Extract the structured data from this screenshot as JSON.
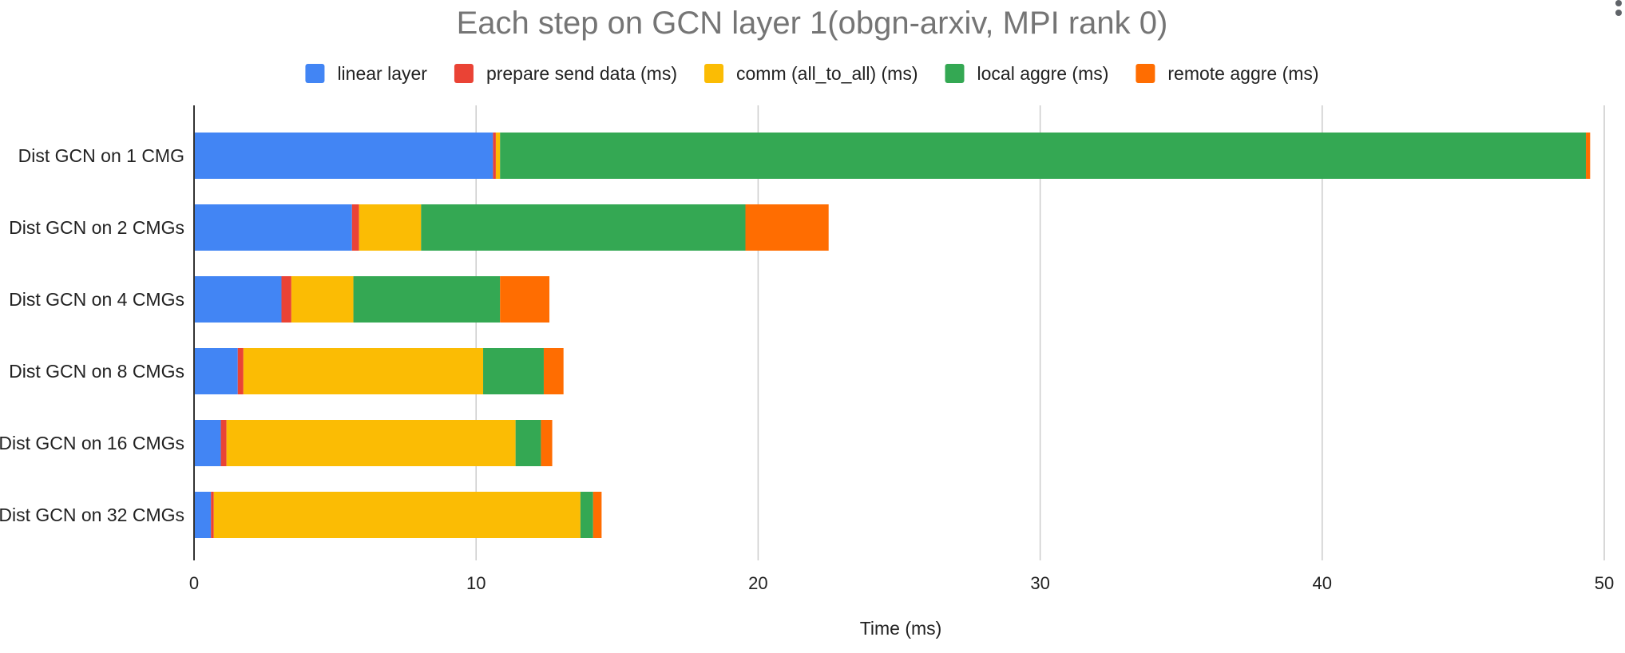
{
  "chart_data": {
    "type": "bar",
    "orientation": "horizontal",
    "stacked": true,
    "title": "Each step on GCN layer 1(obgn-arxiv, MPI rank 0)",
    "xlabel": "Time (ms)",
    "ylabel": "",
    "xlim": [
      0,
      50
    ],
    "xticks": [
      0,
      10,
      20,
      30,
      40,
      50
    ],
    "grid": true,
    "legend_position": "top",
    "categories": [
      "Dist GCN on 1 CMG",
      "Dist GCN on 2 CMGs",
      "Dist GCN on 4 CMGs",
      "Dist GCN on 8 CMGs",
      "Dist GCN on 16 CMGs",
      "Dist GCN on 32 CMGs"
    ],
    "series": [
      {
        "name": "linear layer",
        "color": "#4285f4",
        "values": [
          10.6,
          5.6,
          3.1,
          1.55,
          0.95,
          0.6
        ]
      },
      {
        "name": "prepare send data (ms)",
        "color": "#ea4335",
        "values": [
          0.1,
          0.25,
          0.35,
          0.2,
          0.2,
          0.1
        ]
      },
      {
        "name": "comm (all_to_all) (ms)",
        "color": "#fbbc04",
        "values": [
          0.15,
          2.2,
          2.2,
          8.5,
          10.25,
          13.0
        ]
      },
      {
        "name": "local aggre (ms)",
        "color": "#34a853",
        "values": [
          38.5,
          11.5,
          5.2,
          2.15,
          0.9,
          0.45
        ]
      },
      {
        "name": "remote aggre (ms)",
        "color": "#ff6d01",
        "values": [
          0.15,
          2.95,
          1.75,
          0.7,
          0.4,
          0.3
        ]
      }
    ]
  }
}
